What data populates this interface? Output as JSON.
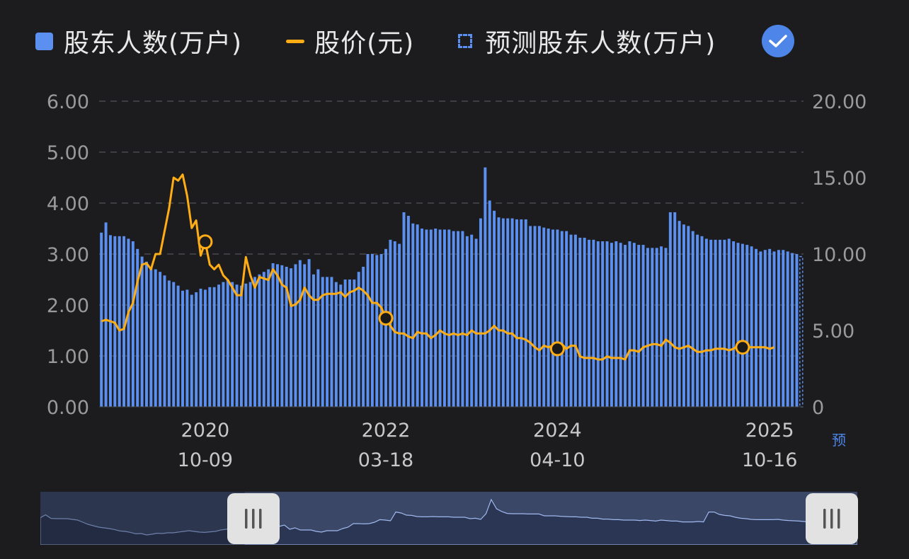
{
  "legend": {
    "holders_label": "股东人数(万户)",
    "price_label": "股价(元)",
    "forecast_label": "预测股东人数(万户)",
    "holders_color": "#5b8ff0",
    "price_color": "#ffad14",
    "forecast_icon": "dashed-square-icon",
    "toggle_icon": "checkmark-icon"
  },
  "axes": {
    "left_ticks": [
      "0.00",
      "1.00",
      "2.00",
      "3.00",
      "4.00",
      "5.00",
      "6.00"
    ],
    "right_ticks": [
      "0",
      "5.00",
      "10.00",
      "15.00",
      "20.00"
    ],
    "x_years": [
      "2020",
      "2022",
      "2024",
      "2025"
    ],
    "x_dates": [
      "10-09",
      "03-18",
      "04-10",
      "10-16"
    ],
    "forecast_marker": "预"
  },
  "chart_data": {
    "type": "bar",
    "title": "",
    "left_ylim": [
      0,
      6
    ],
    "right_ylim": [
      0,
      20
    ],
    "grid": "horizontal dashed",
    "legend_position": "top-left",
    "series": [
      {
        "name": "股东人数(万户)",
        "axis": "left",
        "type": "bar",
        "values": [
          3.42,
          3.62,
          3.37,
          3.35,
          3.35,
          3.35,
          3.3,
          3.25,
          3.1,
          2.95,
          2.85,
          2.75,
          2.7,
          2.65,
          2.58,
          2.48,
          2.45,
          2.38,
          2.28,
          2.3,
          2.2,
          2.25,
          2.32,
          2.3,
          2.35,
          2.35,
          2.4,
          2.45,
          2.5,
          2.45,
          2.4,
          2.38,
          2.42,
          2.45,
          2.55,
          2.6,
          2.65,
          2.7,
          2.82,
          2.8,
          2.78,
          2.75,
          2.72,
          2.8,
          2.88,
          2.8,
          2.9,
          2.6,
          2.7,
          2.55,
          2.55,
          2.55,
          2.45,
          2.4,
          2.5,
          2.5,
          2.5,
          2.65,
          2.75,
          3.0,
          3.0,
          2.98,
          3.0,
          3.1,
          3.28,
          3.25,
          3.2,
          3.82,
          3.75,
          3.6,
          3.58,
          3.5,
          3.48,
          3.48,
          3.5,
          3.48,
          3.48,
          3.48,
          3.45,
          3.45,
          3.45,
          3.35,
          3.38,
          3.3,
          3.7,
          4.7,
          4.05,
          3.85,
          3.72,
          3.7,
          3.7,
          3.7,
          3.68,
          3.68,
          3.68,
          3.55,
          3.55,
          3.55,
          3.52,
          3.5,
          3.48,
          3.48,
          3.45,
          3.45,
          3.38,
          3.38,
          3.32,
          3.32,
          3.28,
          3.28,
          3.25,
          3.25,
          3.25,
          3.22,
          3.25,
          3.22,
          3.18,
          3.25,
          3.22,
          3.18,
          3.18,
          3.12,
          3.12,
          3.12,
          3.15,
          3.12,
          3.82,
          3.82,
          3.65,
          3.58,
          3.55,
          3.45,
          3.38,
          3.35,
          3.3,
          3.28,
          3.28,
          3.28,
          3.28,
          3.3,
          3.25,
          3.22,
          3.2,
          3.18,
          3.15,
          3.1,
          3.05,
          3.08,
          3.1,
          3.05,
          3.08,
          3.08,
          3.05,
          3.02,
          3.0
        ]
      },
      {
        "name": "预测股东人数(万户)",
        "axis": "left",
        "type": "bar-dashed",
        "values": [
          2.95
        ]
      },
      {
        "name": "股价(元)",
        "axis": "right",
        "type": "line",
        "values": [
          5.6,
          5.7,
          5.6,
          5.5,
          5.0,
          5.1,
          6.2,
          6.8,
          8.2,
          9.3,
          9.4,
          9.0,
          10.0,
          10.0,
          11.5,
          13.0,
          15.0,
          14.8,
          15.2,
          13.8,
          11.7,
          12.2,
          9.9,
          10.8,
          9.3,
          9.0,
          9.3,
          8.6,
          8.3,
          7.8,
          7.3,
          7.3,
          9.8,
          8.6,
          7.8,
          8.5,
          8.4,
          8.3,
          9.0,
          8.6,
          8.0,
          7.8,
          6.6,
          6.7,
          7.0,
          7.8,
          7.3,
          7.0,
          7.0,
          7.3,
          7.4,
          7.4,
          7.4,
          7.5,
          7.2,
          7.5,
          7.6,
          7.8,
          7.6,
          7.3,
          6.8,
          6.8,
          6.5,
          5.8,
          5.3,
          4.9,
          4.8,
          4.8,
          4.6,
          4.5,
          4.9,
          4.8,
          4.8,
          4.5,
          4.7,
          5.0,
          4.8,
          4.7,
          4.8,
          4.7,
          4.8,
          4.7,
          5.0,
          4.8,
          4.8,
          4.8,
          5.0,
          5.3,
          5.0,
          5.0,
          4.8,
          4.8,
          4.5,
          4.5,
          4.4,
          4.2,
          3.9,
          3.7,
          4.0,
          3.9,
          4.0,
          3.8,
          4.1,
          3.8,
          4.0,
          4.0,
          3.3,
          3.2,
          3.2,
          3.2,
          3.1,
          3.1,
          3.3,
          3.2,
          3.2,
          3.2,
          3.1,
          3.7,
          3.7,
          3.6,
          3.9,
          4.0,
          4.1,
          4.1,
          4.0,
          4.4,
          4.2,
          3.9,
          3.8,
          3.9,
          4.0,
          3.8,
          3.6,
          3.6,
          3.7,
          3.7,
          3.8,
          3.8,
          3.8,
          3.7,
          3.8,
          4.0,
          3.9,
          3.9,
          3.9,
          3.9,
          3.9,
          3.9,
          3.8,
          3.9
        ],
        "markers": [
          {
            "index": 23,
            "style": "hollow"
          },
          {
            "index": 63,
            "style": "filled"
          },
          {
            "index": 101,
            "style": "filled"
          },
          {
            "index": 142,
            "style": "filled"
          }
        ]
      }
    ],
    "x_ticks": [
      {
        "index": 23,
        "year": "2020",
        "date": "10-09"
      },
      {
        "index": 63,
        "year": "2022",
        "date": "03-18"
      },
      {
        "index": 101,
        "year": "2024",
        "date": "04-10"
      },
      {
        "index": 148,
        "year": "2025",
        "date": "10-16"
      }
    ]
  },
  "navigator": {
    "range_start": 0.25,
    "range_end": 1.0,
    "handle_icon": "grip-lines-icon"
  }
}
